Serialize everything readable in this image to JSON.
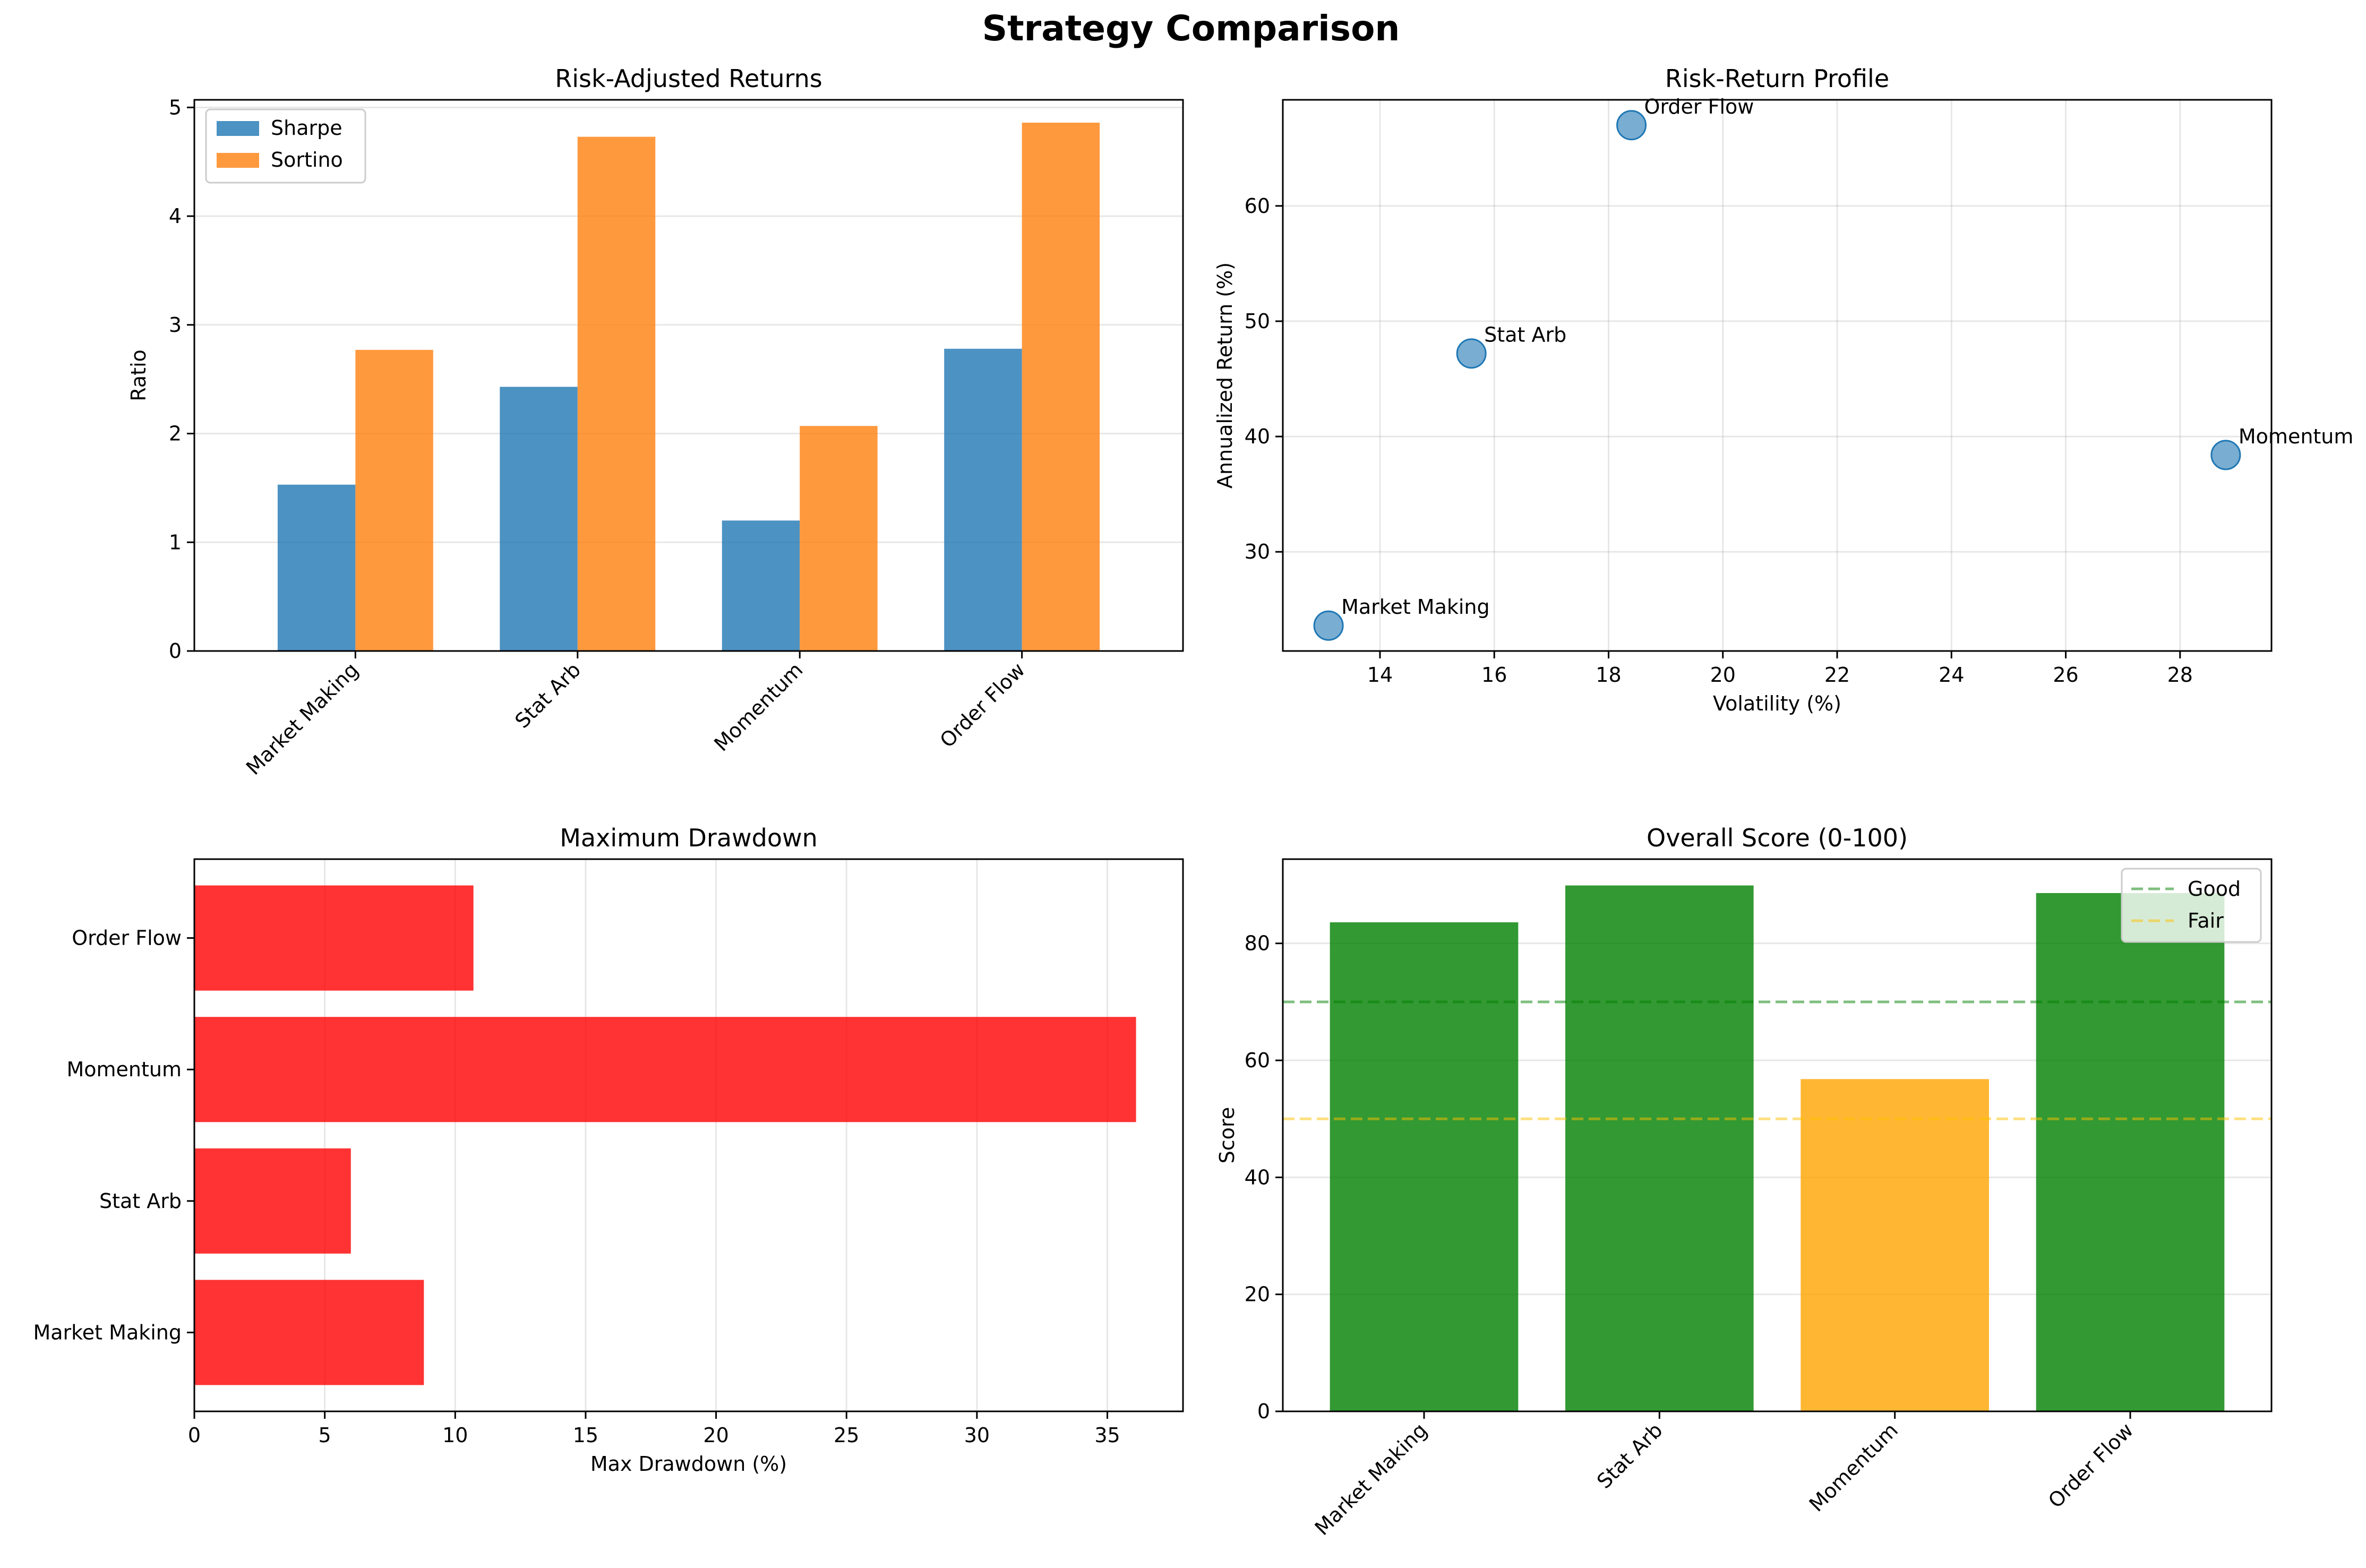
{
  "figure": {
    "title": "Strategy Comparison"
  },
  "chart_data": [
    {
      "id": "risk_adjusted",
      "type": "bar",
      "title": "Risk-Adjusted Returns",
      "xlabel": "",
      "ylabel": "Ratio",
      "categories": [
        "Market Making",
        "Stat Arb",
        "Momentum",
        "Order Flow"
      ],
      "series": [
        {
          "name": "Sharpe",
          "values": [
            1.53,
            2.43,
            1.2,
            2.78
          ],
          "color": "#1f77b4"
        },
        {
          "name": "Sortino",
          "values": [
            2.77,
            4.73,
            2.07,
            4.86
          ],
          "color": "#ff7f0e"
        }
      ],
      "ylim": [
        0,
        5.07
      ],
      "yticks": [
        0,
        1,
        2,
        3,
        4,
        5
      ],
      "grid": true,
      "legend_position": "upper-left"
    },
    {
      "id": "risk_return",
      "type": "scatter",
      "title": "Risk-Return Profile",
      "xlabel": "Volatility (%)",
      "ylabel": "Annualized Return (%)",
      "points": [
        {
          "label": "Market Making",
          "x": 13.1,
          "y": 23.6
        },
        {
          "label": "Stat Arb",
          "x": 15.6,
          "y": 47.2
        },
        {
          "label": "Order Flow",
          "x": 18.4,
          "y": 67.0
        },
        {
          "label": "Momentum",
          "x": 28.8,
          "y": 38.4
        }
      ],
      "color": "#1f77b4",
      "xlim": [
        12.3,
        29.6
      ],
      "ylim": [
        21.4,
        69.2
      ],
      "xticks": [
        14,
        16,
        18,
        20,
        22,
        24,
        26,
        28
      ],
      "yticks": [
        30,
        40,
        50,
        60
      ],
      "grid": true
    },
    {
      "id": "drawdown",
      "type": "bar",
      "orientation": "horizontal",
      "title": "Maximum Drawdown",
      "xlabel": "Max Drawdown (%)",
      "ylabel": "",
      "categories": [
        "Market Making",
        "Stat Arb",
        "Momentum",
        "Order Flow"
      ],
      "values": [
        8.8,
        6.0,
        36.1,
        10.7
      ],
      "color": "#ff0000",
      "xlim": [
        0,
        37.9
      ],
      "xticks": [
        0,
        5,
        10,
        15,
        20,
        25,
        30,
        35
      ],
      "grid": true
    },
    {
      "id": "score",
      "type": "bar",
      "title": "Overall Score (0-100)",
      "xlabel": "",
      "ylabel": "Score",
      "categories": [
        "Market Making",
        "Stat Arb",
        "Momentum",
        "Order Flow"
      ],
      "values": [
        83.6,
        89.9,
        56.8,
        88.6
      ],
      "colors": [
        "#008000",
        "#008000",
        "#ffa500",
        "#008000"
      ],
      "ylim": [
        0,
        94.4
      ],
      "yticks": [
        0,
        20,
        40,
        60,
        80
      ],
      "reference_lines": [
        {
          "name": "Good",
          "y": 70,
          "color": "#008000"
        },
        {
          "name": "Fair",
          "y": 50,
          "color": "#ffc000"
        }
      ],
      "grid": true,
      "legend_position": "upper-right"
    }
  ]
}
